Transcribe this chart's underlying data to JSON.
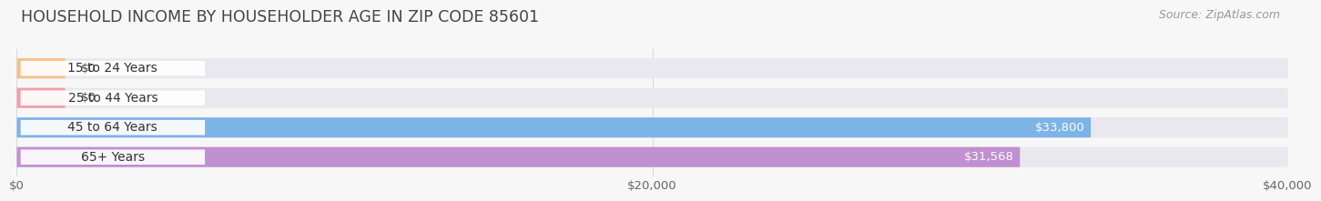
{
  "title": "HOUSEHOLD INCOME BY HOUSEHOLDER AGE IN ZIP CODE 85601",
  "source": "Source: ZipAtlas.com",
  "categories": [
    "15 to 24 Years",
    "25 to 44 Years",
    "45 to 64 Years",
    "65+ Years"
  ],
  "values": [
    0,
    0,
    33800,
    31568
  ],
  "bar_colors": [
    "#f5c088",
    "#f0a0a8",
    "#7eb3e8",
    "#c090d0"
  ],
  "value_labels": [
    "$0",
    "$0",
    "$33,800",
    "$31,568"
  ],
  "xlim": [
    0,
    40000
  ],
  "xticks": [
    0,
    20000,
    40000
  ],
  "xtick_labels": [
    "$0",
    "$20,000",
    "$40,000"
  ],
  "background_color": "#f7f7f7",
  "bar_bg_color": "#e8e8ee",
  "title_fontsize": 12.5,
  "source_fontsize": 9,
  "tick_fontsize": 9.5,
  "label_fontsize": 10,
  "value_fontsize": 9.5,
  "bar_height": 0.68,
  "grid_color": "#d8d8e0"
}
